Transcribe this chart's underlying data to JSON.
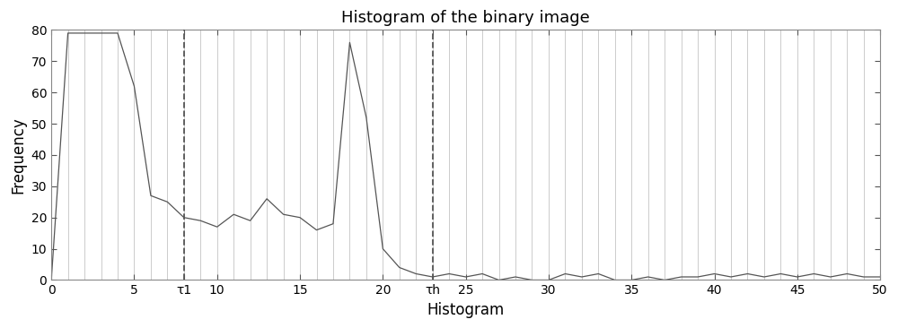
{
  "title": "Histogram of the binary image",
  "xlabel": "Histogram",
  "ylabel": "Frequency",
  "xlim": [
    0,
    50
  ],
  "ylim": [
    0,
    80
  ],
  "xticks": [
    0,
    5,
    10,
    15,
    20,
    25,
    30,
    35,
    40,
    45,
    50
  ],
  "extra_xticks": [
    8,
    23
  ],
  "extra_xtick_labels": [
    "τ1",
    "τh"
  ],
  "tau1": 8,
  "tauh": 23,
  "histogram_values": [
    0,
    79,
    79,
    79,
    79,
    62,
    27,
    25,
    20,
    19,
    17,
    21,
    19,
    26,
    21,
    20,
    16,
    18,
    76,
    52,
    10,
    4,
    2,
    1,
    2,
    1,
    2,
    0,
    1,
    0,
    0,
    2,
    1,
    2,
    0,
    0,
    1,
    0,
    1,
    1,
    2,
    1,
    2,
    1,
    2,
    1,
    2,
    1,
    2,
    1,
    1
  ],
  "line_color": "#555555",
  "dashed_color": "#555555",
  "vline_color": "#cccccc",
  "bg_color": "#ffffff",
  "figwidth": 10.0,
  "figheight": 3.66,
  "dpi": 100
}
